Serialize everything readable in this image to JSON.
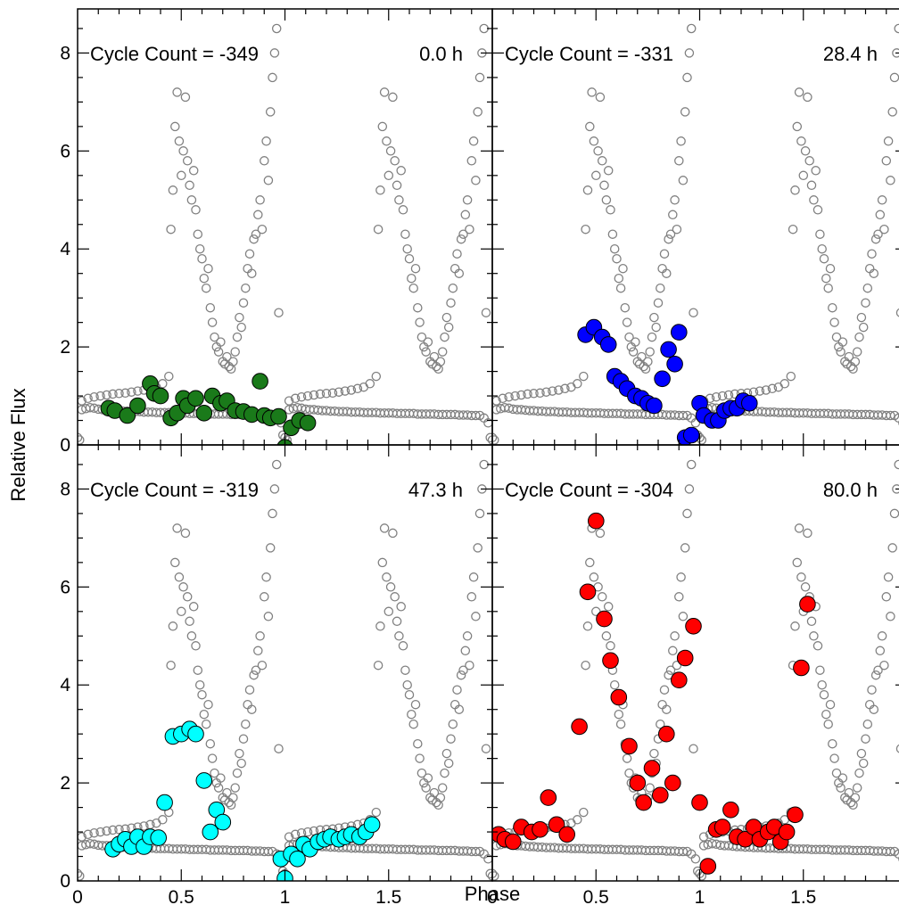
{
  "chart_data": {
    "type": "scatter",
    "xlabel": "Phase",
    "ylabel": "Relative Flux",
    "xlim": [
      0,
      2
    ],
    "ylim": [
      0,
      8.9
    ],
    "x_ticks": [
      0,
      0.5,
      1,
      1.5
    ],
    "x_tick_labels": [
      "0",
      "0.5",
      "1",
      "1.5"
    ],
    "y_ticks": [
      0,
      2,
      4,
      6,
      8
    ],
    "y_tick_labels": [
      "0",
      "2",
      "4",
      "6",
      "8"
    ],
    "grid": false,
    "background_color": "#808080",
    "background_series": {
      "description": "phase-folded light curve repeated in every panel (open grey circles), phase 0-2",
      "x": [
        0.02,
        0.04,
        0.06,
        0.08,
        0.1,
        0.12,
        0.14,
        0.16,
        0.18,
        0.2,
        0.22,
        0.24,
        0.26,
        0.28,
        0.3,
        0.32,
        0.34,
        0.36,
        0.38,
        0.4,
        0.42,
        0.44,
        0.46,
        0.48,
        0.5,
        0.52,
        0.54,
        0.56,
        0.58,
        0.6,
        0.62,
        0.64,
        0.66,
        0.68,
        0.7,
        0.72,
        0.74,
        0.76,
        0.78,
        0.8,
        0.82,
        0.84,
        0.86,
        0.88,
        0.9,
        0.92,
        0.94,
        0.96,
        0.98,
        0.02,
        0.05,
        0.08,
        0.11,
        0.14,
        0.17,
        0.2,
        0.23,
        0.26,
        0.29,
        0.32,
        0.35,
        0.38,
        0.41,
        0.44,
        0.45,
        0.46,
        0.47,
        0.48,
        0.49,
        0.5,
        0.51,
        0.52,
        0.53,
        0.54,
        0.55,
        0.56,
        0.57,
        0.58,
        0.59,
        0.6,
        0.61,
        0.62,
        0.63,
        0.64,
        0.65,
        0.66,
        0.67,
        0.68,
        0.69,
        0.7,
        0.71,
        0.72,
        0.73,
        0.74,
        0.75,
        0.76,
        0.77,
        0.78,
        0.79,
        0.8,
        0.81,
        0.82,
        0.83,
        0.84,
        0.85,
        0.86,
        0.87,
        0.88,
        0.89,
        0.9,
        0.91,
        0.92,
        0.93,
        0.94,
        0.95,
        0.96,
        0.97,
        1.02,
        1.04,
        1.06,
        1.08,
        1.1,
        1.12,
        1.14,
        1.16,
        1.18,
        1.2,
        1.22,
        1.24,
        1.26,
        1.28,
        1.3,
        1.32,
        1.34,
        1.36,
        1.38,
        1.4,
        1.42,
        1.44,
        1.46,
        1.48,
        1.5,
        1.52,
        1.54,
        1.56,
        1.58,
        1.6,
        1.62,
        1.64,
        1.66,
        1.68,
        1.7,
        1.72,
        1.74,
        1.76,
        1.78,
        1.8,
        1.82,
        1.84,
        1.86,
        1.88,
        1.9,
        1.92,
        1.94,
        1.96,
        1.98,
        1.02,
        1.05,
        1.08,
        1.11,
        1.14,
        1.17,
        1.2,
        1.23,
        1.26,
        1.29,
        1.32,
        1.35,
        1.38,
        1.41,
        1.44,
        1.45,
        1.46,
        1.47,
        1.48,
        1.49,
        1.5,
        1.51,
        1.52,
        1.53,
        1.54,
        1.55,
        1.56,
        1.57,
        1.58,
        1.59,
        1.6,
        1.61,
        1.62,
        1.63,
        1.64,
        1.65,
        1.66,
        1.67,
        1.68,
        1.69,
        1.7,
        1.71,
        1.72,
        1.73,
        1.74,
        1.75,
        1.76,
        1.77,
        1.78,
        1.79,
        1.8,
        1.81,
        1.82,
        1.83,
        1.84,
        1.85,
        1.86,
        1.87,
        1.88,
        1.89,
        1.9,
        1.91,
        1.92,
        1.93,
        1.94,
        1.95,
        1.96,
        1.97,
        0.0,
        0.01,
        0.99,
        1.0,
        1.01,
        1.99,
        2.0
      ],
      "y": [
        0.72,
        0.74,
        0.76,
        0.75,
        0.73,
        0.72,
        0.72,
        0.71,
        0.7,
        0.7,
        0.69,
        0.69,
        0.68,
        0.68,
        0.68,
        0.67,
        0.67,
        0.67,
        0.66,
        0.66,
        0.66,
        0.66,
        0.65,
        0.65,
        0.65,
        0.65,
        0.64,
        0.64,
        0.64,
        0.64,
        0.64,
        0.63,
        0.63,
        0.63,
        0.63,
        0.63,
        0.62,
        0.62,
        0.62,
        0.62,
        0.62,
        0.61,
        0.61,
        0.61,
        0.6,
        0.6,
        0.6,
        0.55,
        0.45,
        0.9,
        0.95,
        0.98,
        1.0,
        1.02,
        1.04,
        1.05,
        1.06,
        1.08,
        1.1,
        1.12,
        1.15,
        1.18,
        1.25,
        1.4,
        4.4,
        5.2,
        6.5,
        7.2,
        6.2,
        5.5,
        6.0,
        7.1,
        5.8,
        5.3,
        5.0,
        5.6,
        4.8,
        4.3,
        4.0,
        3.8,
        3.4,
        3.2,
        3.6,
        2.8,
        2.5,
        2.2,
        2.0,
        1.9,
        2.1,
        1.7,
        1.65,
        1.8,
        1.6,
        1.55,
        1.7,
        1.9,
        2.2,
        2.6,
        2.4,
        2.9,
        3.2,
        3.6,
        3.9,
        3.5,
        4.2,
        4.3,
        4.7,
        5.0,
        4.4,
        5.8,
        6.2,
        5.4,
        6.8,
        7.5,
        8.0,
        8.5,
        2.7,
        0.72,
        0.74,
        0.76,
        0.75,
        0.73,
        0.72,
        0.72,
        0.71,
        0.7,
        0.7,
        0.69,
        0.69,
        0.68,
        0.68,
        0.68,
        0.67,
        0.67,
        0.67,
        0.66,
        0.66,
        0.66,
        0.66,
        0.65,
        0.65,
        0.65,
        0.65,
        0.64,
        0.64,
        0.64,
        0.64,
        0.64,
        0.63,
        0.63,
        0.63,
        0.63,
        0.63,
        0.62,
        0.62,
        0.62,
        0.62,
        0.62,
        0.61,
        0.61,
        0.61,
        0.6,
        0.6,
        0.6,
        0.55,
        0.45,
        0.9,
        0.95,
        0.98,
        1.0,
        1.02,
        1.04,
        1.05,
        1.06,
        1.08,
        1.1,
        1.12,
        1.15,
        1.18,
        1.25,
        1.4,
        4.4,
        5.2,
        6.5,
        7.2,
        6.2,
        5.5,
        6.0,
        7.1,
        5.8,
        5.3,
        5.0,
        5.6,
        4.8,
        4.3,
        4.0,
        3.8,
        3.4,
        3.2,
        3.6,
        2.8,
        2.5,
        2.2,
        2.0,
        1.9,
        2.1,
        1.7,
        1.65,
        1.8,
        1.6,
        1.55,
        1.7,
        1.9,
        2.2,
        2.6,
        2.4,
        2.9,
        3.2,
        3.6,
        3.9,
        3.5,
        4.2,
        4.3,
        4.7,
        5.0,
        4.4,
        5.8,
        6.2,
        5.4,
        6.8,
        7.5,
        8.0,
        8.5,
        2.7,
        0.15,
        0.1,
        0.2,
        0.15,
        0.1,
        0.15,
        0.1
      ]
    },
    "panels": [
      {
        "cycle_label": "Cycle Count = -349",
        "time_label": "0.0 h",
        "color": "#1a7a1a",
        "series": {
          "x": [
            0.15,
            0.18,
            0.24,
            0.29,
            0.35,
            0.37,
            0.4,
            0.45,
            0.48,
            0.51,
            0.53,
            0.57,
            0.61,
            0.65,
            0.69,
            0.72,
            0.76,
            0.8,
            0.84,
            0.88,
            0.9,
            0.93,
            0.97,
            1.0,
            1.03,
            1.07,
            1.11
          ],
          "y": [
            0.75,
            0.7,
            0.6,
            0.8,
            1.25,
            1.05,
            1.0,
            0.55,
            0.65,
            0.95,
            0.8,
            0.95,
            0.65,
            1.0,
            0.85,
            0.9,
            0.7,
            0.68,
            0.62,
            1.3,
            0.6,
            0.55,
            0.58,
            -0.05,
            0.35,
            0.5,
            0.45
          ]
        }
      },
      {
        "cycle_label": "Cycle Count = -331",
        "time_label": "28.4 h",
        "color": "#0000ff",
        "series": {
          "x": [
            0.45,
            0.49,
            0.53,
            0.56,
            0.59,
            0.62,
            0.65,
            0.69,
            0.72,
            0.75,
            0.78,
            0.82,
            0.85,
            0.88,
            0.9,
            0.93,
            0.96,
            1.0,
            1.02,
            1.06,
            1.09,
            1.12,
            1.15,
            1.18,
            1.21,
            1.24
          ],
          "y": [
            2.25,
            2.4,
            2.2,
            2.05,
            1.4,
            1.3,
            1.15,
            1.0,
            0.95,
            0.85,
            0.8,
            1.35,
            1.95,
            1.65,
            2.3,
            0.15,
            0.2,
            0.85,
            0.6,
            0.5,
            0.5,
            0.7,
            0.75,
            0.75,
            0.9,
            0.85
          ]
        }
      },
      {
        "cycle_label": "Cycle Count = -319",
        "time_label": "47.3 h",
        "color": "#00ffff",
        "series": {
          "x": [
            0.17,
            0.2,
            0.23,
            0.26,
            0.29,
            0.32,
            0.35,
            0.39,
            0.42,
            0.46,
            0.5,
            0.54,
            0.57,
            0.61,
            0.64,
            0.67,
            0.7,
            0.98,
            1.0,
            1.03,
            1.06,
            1.09,
            1.12,
            1.16,
            1.19,
            1.22,
            1.26,
            1.29,
            1.32,
            1.36,
            1.39,
            1.42
          ],
          "y": [
            0.65,
            0.75,
            0.85,
            0.7,
            0.9,
            0.7,
            0.9,
            0.88,
            1.6,
            2.95,
            3.0,
            3.1,
            3.0,
            2.05,
            1.0,
            1.45,
            1.2,
            0.45,
            0.05,
            0.55,
            0.45,
            0.75,
            0.65,
            0.8,
            0.85,
            0.9,
            0.85,
            0.9,
            0.95,
            0.9,
            1.0,
            1.15
          ]
        }
      },
      {
        "cycle_label": "Cycle Count = -304",
        "time_label": "80.0 h",
        "color": "#ff0000",
        "series": {
          "x": [
            0.03,
            0.06,
            0.1,
            0.14,
            0.19,
            0.23,
            0.27,
            0.31,
            0.36,
            0.42,
            0.46,
            0.5,
            0.54,
            0.57,
            0.61,
            0.66,
            0.7,
            0.73,
            0.77,
            0.81,
            0.84,
            0.87,
            0.9,
            0.93,
            0.97,
            1.0,
            1.04,
            1.08,
            1.11,
            1.15,
            1.18,
            1.22,
            1.26,
            1.29,
            1.33,
            1.36,
            1.39,
            1.42,
            1.46,
            1.49,
            1.52
          ],
          "y": [
            0.95,
            0.85,
            0.8,
            1.1,
            1.0,
            1.05,
            1.7,
            1.15,
            0.95,
            3.15,
            5.9,
            7.35,
            5.35,
            4.5,
            3.75,
            2.75,
            2.0,
            1.6,
            2.3,
            1.75,
            3.0,
            2.0,
            4.1,
            4.55,
            5.2,
            1.6,
            0.3,
            1.05,
            1.1,
            1.45,
            0.9,
            0.85,
            1.1,
            0.85,
            1.0,
            1.1,
            0.8,
            1.0,
            1.35,
            4.35,
            5.65
          ]
        }
      }
    ]
  }
}
